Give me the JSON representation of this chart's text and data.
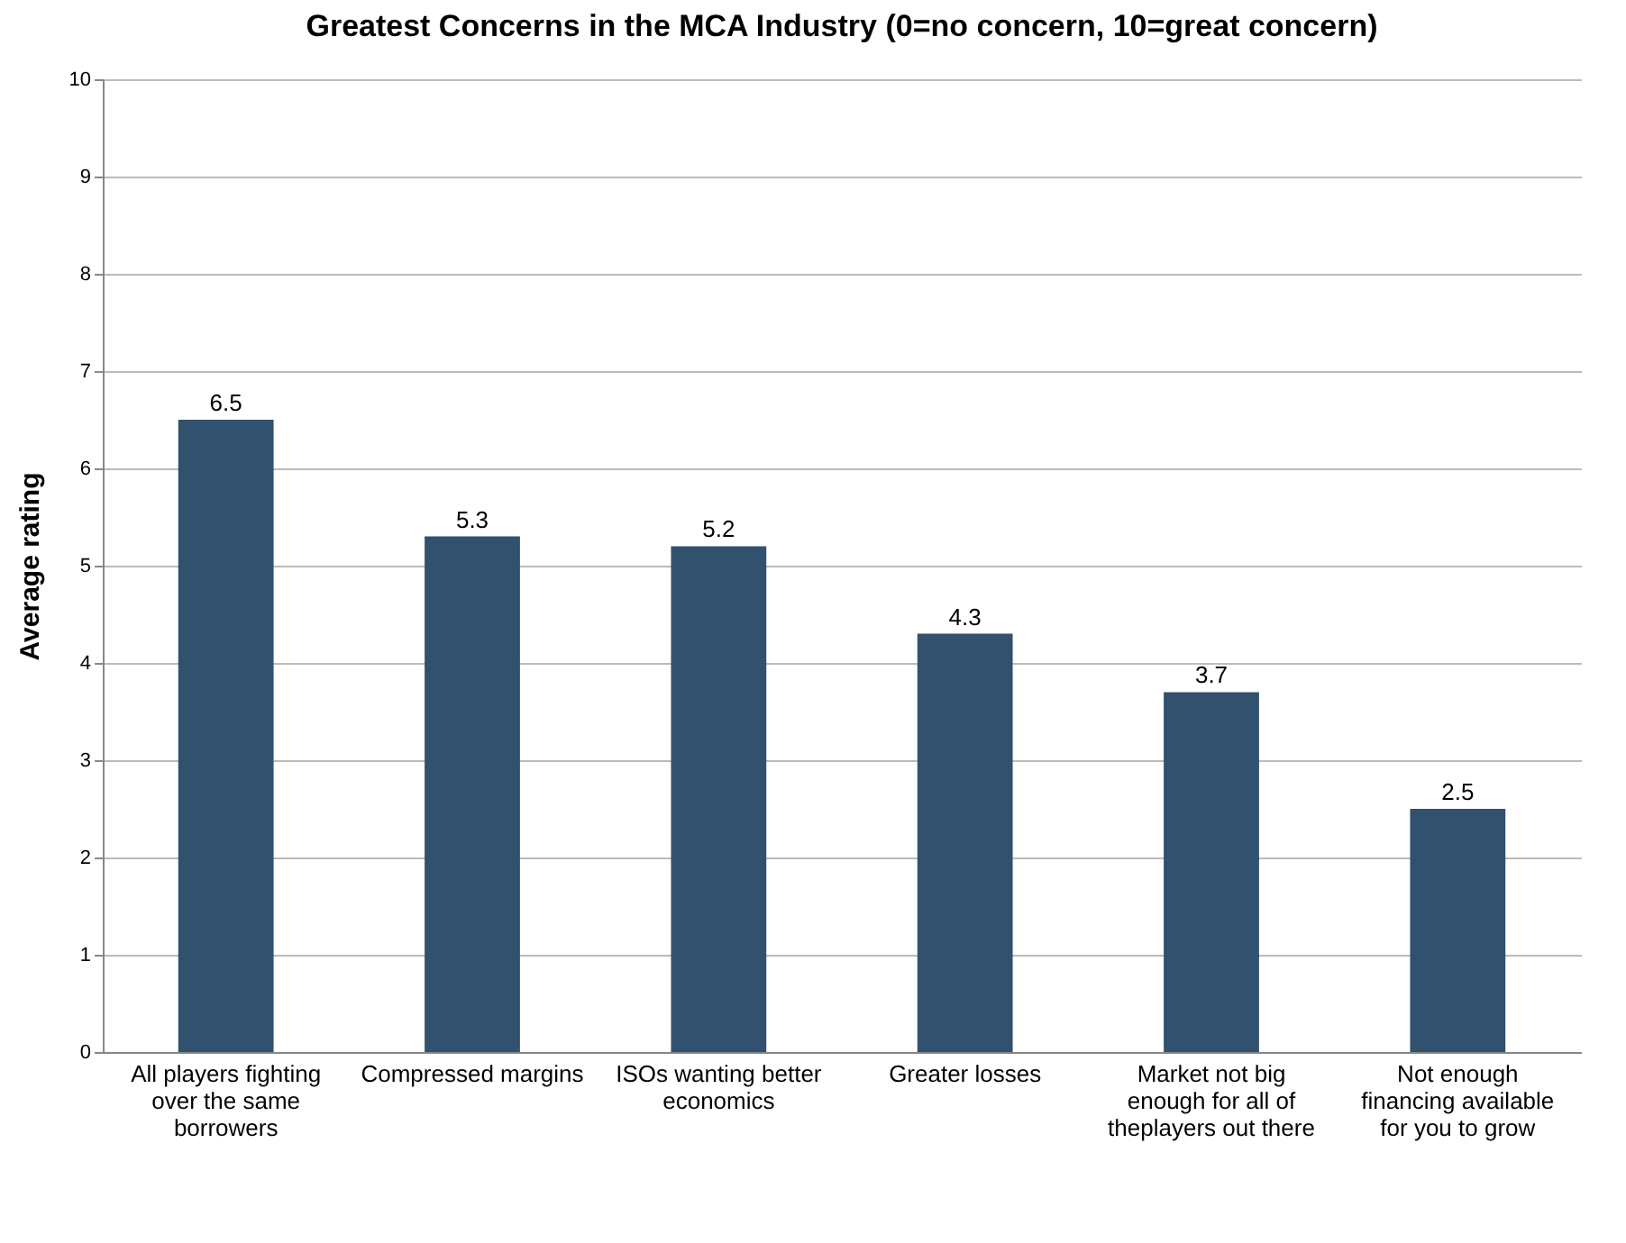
{
  "chart_data": {
    "type": "bar",
    "title": "Greatest Concerns in the MCA Industry (0=no concern, 10=great concern)",
    "ylabel": "Average rating",
    "categories": [
      "All players fighting\nover the same\nborrowers",
      "Compressed margins",
      "ISOs wanting better\neconomics",
      "Greater losses",
      "Market not big\nenough for all of\ntheplayers out there",
      "Not enough\nfinancing available\nfor you to grow"
    ],
    "values": [
      6.5,
      5.3,
      5.2,
      4.3,
      3.7,
      2.5
    ],
    "color": "#31516f",
    "ylim": [
      0,
      10
    ],
    "yticks": [
      0,
      1,
      2,
      3,
      4,
      5,
      6,
      7,
      8,
      9,
      10
    ],
    "grid": "y",
    "data_labels": true
  }
}
